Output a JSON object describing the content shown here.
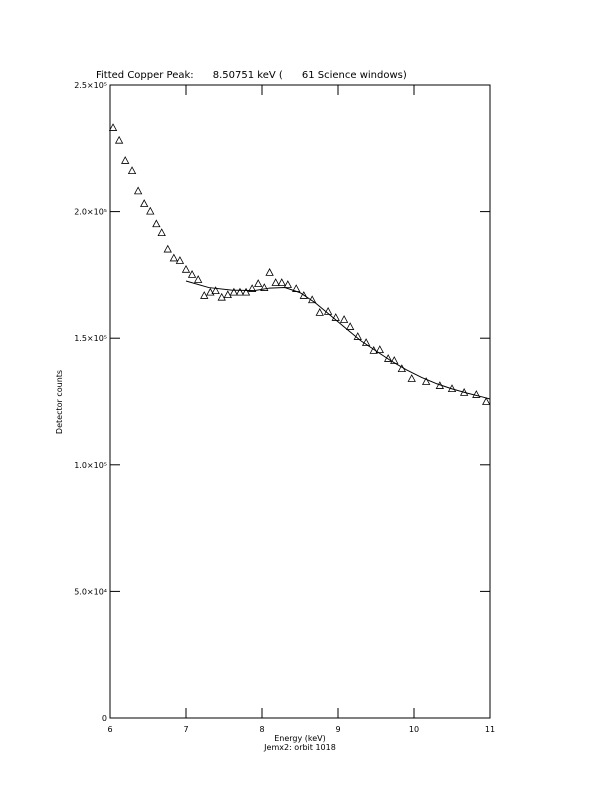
{
  "chart_data": {
    "type": "scatter",
    "title": "Fitted Copper Peak:      8.50751 keV (      61 Science windows)",
    "x_label": "Energy (keV)",
    "subtitle": "Jemx2: orbit 1018",
    "y_label": "Detector counts",
    "xlim": [
      6,
      11
    ],
    "xticks": [
      6,
      7,
      8,
      9,
      10,
      11
    ],
    "ylim": [
      0,
      250000
    ],
    "yticks": [
      0,
      {
        "value": 50000,
        "label": "5.0×10⁴"
      },
      {
        "value": 100000,
        "label": "1.0×10⁵"
      },
      {
        "value": 150000,
        "label": "1.5×10⁵"
      },
      {
        "value": 200000,
        "label": "2.0×10⁵"
      },
      {
        "value": 250000,
        "label": "2.5×10⁵"
      }
    ],
    "series": [
      {
        "color": "#000000",
        "marker": "triangle",
        "x": [
          6.04,
          6.12,
          6.2,
          6.29,
          6.37,
          6.45,
          6.53,
          6.61,
          6.68,
          6.76,
          6.84,
          6.92,
          7.0,
          7.08,
          7.16,
          7.24,
          7.32,
          7.39,
          7.47,
          7.55,
          7.63,
          7.71,
          7.79,
          7.87,
          7.95,
          8.03,
          8.1,
          8.18,
          8.26,
          8.34,
          8.45,
          8.55,
          8.66,
          8.76,
          8.87,
          8.97,
          9.08,
          9.16,
          9.26,
          9.37,
          9.47,
          9.55,
          9.66,
          9.74,
          9.84,
          9.97,
          10.16,
          10.34,
          10.5,
          10.66,
          10.82,
          10.95
        ],
        "values": [
          233000,
          228000,
          220000,
          216000,
          208000,
          203000,
          200000,
          195000,
          191500,
          185000,
          181500,
          180500,
          177000,
          175000,
          173000,
          166700,
          168000,
          168600,
          166000,
          167000,
          168000,
          168000,
          168000,
          169400,
          171400,
          169800,
          175800,
          171800,
          171800,
          171000,
          169400,
          166700,
          165000,
          160000,
          160400,
          158000,
          157200,
          154400,
          150500,
          148100,
          145000,
          145300,
          141800,
          141000,
          137800,
          133900,
          132700,
          131100,
          129900,
          128400,
          127600,
          124800
        ]
      },
      {
        "color": "#000000",
        "marker": "line",
        "x": [
          7.0,
          7.3,
          7.6,
          7.9,
          8.1,
          8.3,
          8.5,
          8.7,
          8.9,
          9.1,
          9.3,
          9.5,
          9.7,
          9.9,
          10.1,
          10.3,
          10.5,
          10.7,
          10.9,
          11.0
        ],
        "values": [
          172600,
          170000,
          169000,
          168800,
          169800,
          170000,
          168000,
          164000,
          159000,
          154000,
          149000,
          145000,
          141000,
          137500,
          134500,
          132000,
          130000,
          128300,
          126800,
          126000
        ]
      }
    ]
  }
}
